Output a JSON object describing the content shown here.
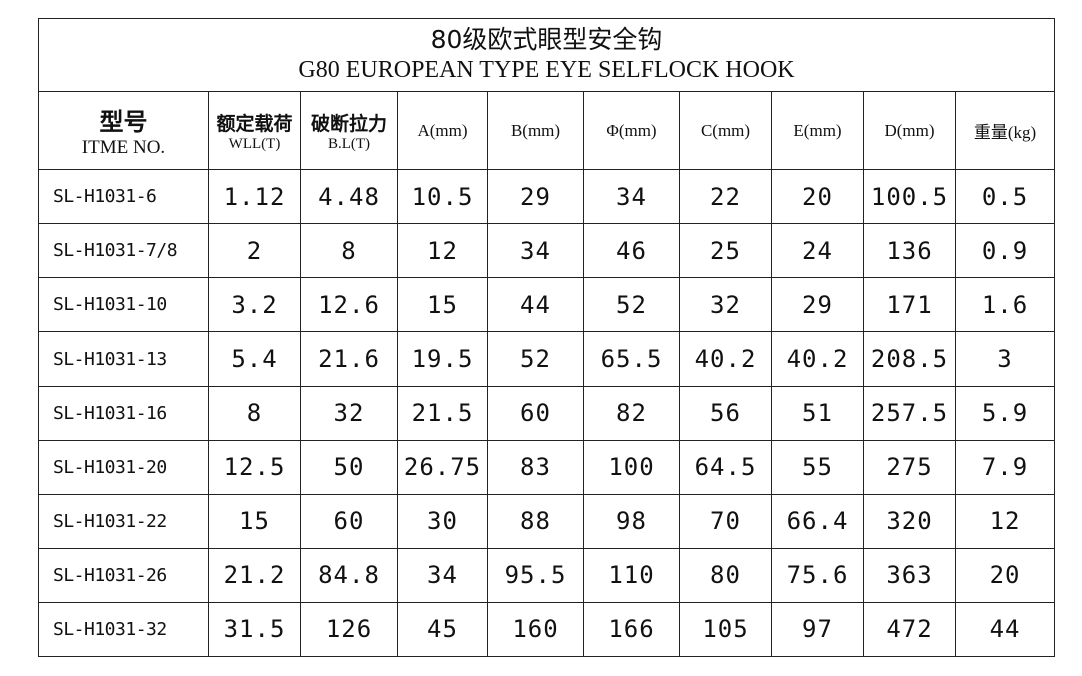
{
  "title": {
    "zh": "80级欧式眼型安全钩",
    "en": "G80  EUROPEAN TYPE EYE SELFLOCK HOOK"
  },
  "headers": [
    {
      "zh": "型号",
      "sub": "ITME NO."
    },
    {
      "zh": "额定载荷",
      "sub": "WLL(T)"
    },
    {
      "zh": "破断拉力",
      "sub": "B.L(T)"
    },
    {
      "label": "A(mm)"
    },
    {
      "label": "B(mm)"
    },
    {
      "label": "Φ(mm)"
    },
    {
      "label": "C(mm)"
    },
    {
      "label": "E(mm)"
    },
    {
      "label": "D(mm)"
    },
    {
      "label": "重量(kg)"
    }
  ],
  "rows": [
    [
      "SL-H1031-6",
      "1.12",
      "4.48",
      "10.5",
      "29",
      "34",
      "22",
      "20",
      "100.5",
      "0.5"
    ],
    [
      "SL-H1031-7/8",
      "2",
      "8",
      "12",
      "34",
      "46",
      "25",
      "24",
      "136",
      "0.9"
    ],
    [
      "SL-H1031-10",
      "3.2",
      "12.6",
      "15",
      "44",
      "52",
      "32",
      "29",
      "171",
      "1.6"
    ],
    [
      "SL-H1031-13",
      "5.4",
      "21.6",
      "19.5",
      "52",
      "65.5",
      "40.2",
      "40.2",
      "208.5",
      "3"
    ],
    [
      "SL-H1031-16",
      "8",
      "32",
      "21.5",
      "60",
      "82",
      "56",
      "51",
      "257.5",
      "5.9"
    ],
    [
      "SL-H1031-20",
      "12.5",
      "50",
      "26.75",
      "83",
      "100",
      "64.5",
      "55",
      "275",
      "7.9"
    ],
    [
      "SL-H1031-22",
      "15",
      "60",
      "30",
      "88",
      "98",
      "70",
      "66.4",
      "320",
      "12"
    ],
    [
      "SL-H1031-26",
      "21.2",
      "84.8",
      "34",
      "95.5",
      "110",
      "80",
      "75.6",
      "363",
      "20"
    ],
    [
      "SL-H1031-32",
      "31.5",
      "126",
      "45",
      "160",
      "166",
      "105",
      "97",
      "472",
      "44"
    ]
  ]
}
